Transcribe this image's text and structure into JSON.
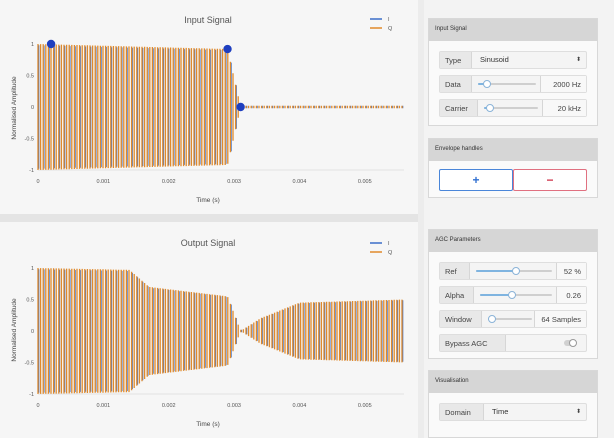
{
  "input_chart": {
    "title": "Input Signal",
    "xlabel": "Time (s)",
    "ylabel": "Normalised Amplitude",
    "x_ticks": [
      "0",
      "0.001",
      "0.002",
      "0.003",
      "0.004",
      "0.005"
    ],
    "y_ticks": [
      "1",
      "0.5",
      "0",
      "-0.5",
      "-1"
    ],
    "legend": [
      "I",
      "Q"
    ]
  },
  "output_chart": {
    "title": "Output Signal",
    "xlabel": "Time (s)",
    "ylabel": "Normalised Amplitude",
    "x_ticks": [
      "0",
      "0.001",
      "0.002",
      "0.003",
      "0.004",
      "0.005"
    ],
    "y_ticks": [
      "1",
      "0.5",
      "0",
      "-0.5",
      "-1"
    ],
    "legend": [
      "I",
      "Q"
    ]
  },
  "chart_data": [
    {
      "type": "line",
      "title": "Input Signal",
      "xlabel": "Time (s)",
      "ylabel": "Normalised Amplitude",
      "xlim": [
        0,
        0.0056
      ],
      "ylim": [
        -1,
        1
      ],
      "series": [
        {
          "name": "I",
          "color": "#3b6fc9"
        },
        {
          "name": "Q",
          "color": "#e08a2c"
        }
      ],
      "envelope_handles": [
        {
          "x": 0.0002,
          "y": 1.0
        },
        {
          "x": 0.0029,
          "y": 0.92
        },
        {
          "x": 0.0031,
          "y": 0.0
        }
      ],
      "envelope": [
        [
          0,
          1.0
        ],
        [
          0.0029,
          0.92
        ],
        [
          0.0031,
          0.0
        ],
        [
          0.0056,
          0.0
        ]
      ]
    },
    {
      "type": "line",
      "title": "Output Signal",
      "xlabel": "Time (s)",
      "ylabel": "Normalised Amplitude",
      "xlim": [
        0,
        0.0056
      ],
      "ylim": [
        -1,
        1
      ],
      "series": [
        {
          "name": "I",
          "color": "#3b6fc9"
        },
        {
          "name": "Q",
          "color": "#e08a2c"
        }
      ],
      "envelope": [
        [
          0,
          1.0
        ],
        [
          0.0014,
          0.97
        ],
        [
          0.0017,
          0.7
        ],
        [
          0.0029,
          0.55
        ],
        [
          0.0031,
          0.0
        ],
        [
          0.0034,
          0.2
        ],
        [
          0.004,
          0.45
        ],
        [
          0.0056,
          0.5
        ]
      ]
    }
  ],
  "colors": {
    "series_i": "#3b6fc9",
    "series_q": "#e08a2c",
    "handle": "#1f3fbf"
  },
  "input_panel": {
    "header": "Input Signal",
    "type_label": "Type",
    "type_value": "Sinusoid",
    "data_label": "Data",
    "data_value": "2000 Hz",
    "data_level": 0.15,
    "carrier_label": "Carrier",
    "carrier_value": "20 kHz",
    "carrier_level": 0.12
  },
  "envelope_panel": {
    "header": "Envelope handles",
    "add_label": "+",
    "remove_label": "−"
  },
  "agc_panel": {
    "header": "AGC Parameters",
    "ref_label": "Ref",
    "ref_value": "52 %",
    "ref_level": 0.52,
    "alpha_label": "Alpha",
    "alpha_value": "0.26",
    "alpha_level": 0.45,
    "window_label": "Window",
    "window_value": "64 Samples",
    "window_level": 0.1,
    "bypass_label": "Bypass AGC"
  },
  "vis_panel": {
    "header": "Visualisation",
    "domain_label": "Domain",
    "domain_value": "Time"
  }
}
